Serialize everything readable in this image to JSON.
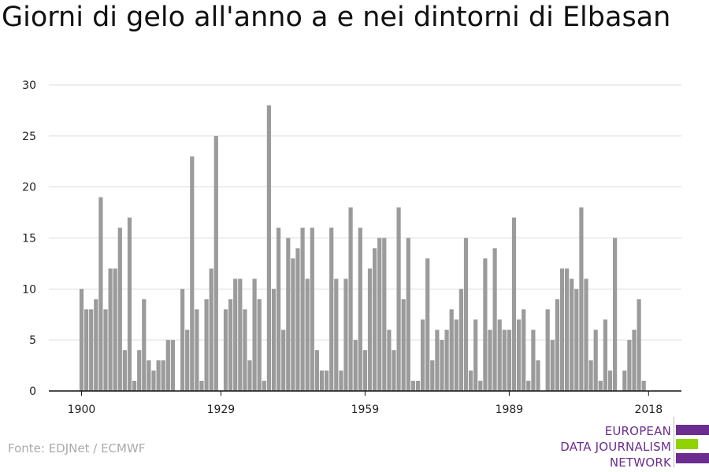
{
  "source": "Fonte: EDJNet / ECMWF",
  "logo": {
    "line1": "EUROPEAN",
    "line2": "DATA JOURNALISM",
    "line3": "NETWORK",
    "bar_colors": [
      "#6b2d8f",
      "#8fd400",
      "#6b2d8f"
    ]
  },
  "colors": {
    "bar": "#9b9b9b",
    "grid": "#dddddd",
    "axis": "#111111"
  },
  "chart_data": {
    "type": "bar",
    "title": "Giorni di gelo all'anno a e nei dintorni di Elbasan",
    "xlabel": "",
    "ylabel": "",
    "ylim": [
      0,
      30
    ],
    "yticks": [
      0,
      5,
      10,
      15,
      20,
      25,
      30
    ],
    "xticks": [
      1900,
      1929,
      1959,
      1989,
      2018
    ],
    "grid": true,
    "x": [
      1900,
      1901,
      1902,
      1903,
      1904,
      1905,
      1906,
      1907,
      1908,
      1909,
      1910,
      1911,
      1912,
      1913,
      1914,
      1915,
      1916,
      1917,
      1918,
      1919,
      1920,
      1921,
      1922,
      1923,
      1924,
      1925,
      1926,
      1927,
      1928,
      1929,
      1930,
      1931,
      1932,
      1933,
      1934,
      1935,
      1936,
      1937,
      1938,
      1939,
      1940,
      1941,
      1942,
      1943,
      1944,
      1945,
      1946,
      1947,
      1948,
      1949,
      1950,
      1951,
      1952,
      1953,
      1954,
      1955,
      1956,
      1957,
      1958,
      1959,
      1960,
      1961,
      1962,
      1963,
      1964,
      1965,
      1966,
      1967,
      1968,
      1969,
      1970,
      1971,
      1972,
      1973,
      1974,
      1975,
      1976,
      1977,
      1978,
      1979,
      1980,
      1981,
      1982,
      1983,
      1984,
      1985,
      1986,
      1987,
      1988,
      1989,
      1990,
      1991,
      1992,
      1993,
      1994,
      1995,
      1996,
      1997,
      1998,
      1999,
      2000,
      2001,
      2002,
      2003,
      2004,
      2005,
      2006,
      2007,
      2008,
      2009,
      2010,
      2011,
      2012,
      2013,
      2014,
      2015,
      2016,
      2017,
      2018
    ],
    "values": [
      10,
      8,
      8,
      9,
      19,
      8,
      12,
      12,
      16,
      4,
      17,
      1,
      4,
      9,
      3,
      2,
      3,
      3,
      5,
      5,
      0,
      10,
      6,
      23,
      8,
      1,
      9,
      12,
      25,
      0,
      8,
      9,
      11,
      11,
      8,
      3,
      11,
      9,
      1,
      28,
      10,
      16,
      6,
      15,
      13,
      14,
      16,
      11,
      16,
      4,
      2,
      2,
      16,
      11,
      2,
      11,
      18,
      5,
      16,
      4,
      12,
      14,
      15,
      15,
      6,
      4,
      18,
      9,
      15,
      1,
      1,
      7,
      13,
      3,
      6,
      5,
      6,
      8,
      7,
      10,
      15,
      2,
      7,
      1,
      13,
      6,
      14,
      7,
      6,
      6,
      17,
      7,
      8,
      1,
      6,
      3,
      0,
      8,
      5,
      9,
      12,
      12,
      11,
      10,
      18,
      11,
      3,
      6,
      1,
      7,
      2,
      15,
      0,
      2,
      5,
      6,
      9,
      1,
      0
    ]
  }
}
